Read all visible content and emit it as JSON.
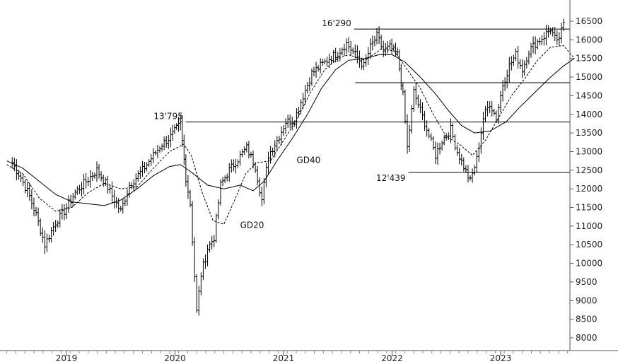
{
  "chart_data": {
    "type": "line",
    "style": "ohlc-bars",
    "title": "",
    "xlabel": "",
    "ylabel": "",
    "x_ticks": [
      "2019",
      "2020",
      "2021",
      "2022",
      "2023"
    ],
    "y_ticks": [
      16500,
      16000,
      15500,
      15000,
      14500,
      14000,
      13500,
      13000,
      12500,
      12000,
      11500,
      11000,
      10500,
      10000,
      9500,
      9000,
      8500,
      8000
    ],
    "ylim": [
      7800,
      16650
    ],
    "xlim": [
      2018.45,
      2023.75
    ],
    "y_axis_position": "right",
    "grid": false,
    "colors": {
      "price": "#000000",
      "levels": "#000000",
      "axis": "#555555"
    },
    "series": [
      {
        "role": "price",
        "points": [
          [
            2018.5,
            12700
          ],
          [
            2018.58,
            12300
          ],
          [
            2018.66,
            11800
          ],
          [
            2018.72,
            11300
          ],
          [
            2018.8,
            10500
          ],
          [
            2018.9,
            11100
          ],
          [
            2018.98,
            11400
          ],
          [
            2019.08,
            11900
          ],
          [
            2019.18,
            12200
          ],
          [
            2019.28,
            12500
          ],
          [
            2019.36,
            12150
          ],
          [
            2019.44,
            11700
          ],
          [
            2019.5,
            11400
          ],
          [
            2019.58,
            12100
          ],
          [
            2019.7,
            12500
          ],
          [
            2019.8,
            12900
          ],
          [
            2019.88,
            13200
          ],
          [
            2019.96,
            13400
          ],
          [
            2020.05,
            13750
          ],
          [
            2020.1,
            12300
          ],
          [
            2020.14,
            11600
          ],
          [
            2020.2,
            8700
          ],
          [
            2020.24,
            9700
          ],
          [
            2020.3,
            10400
          ],
          [
            2020.36,
            10700
          ],
          [
            2020.42,
            12100
          ],
          [
            2020.5,
            12500
          ],
          [
            2020.58,
            12800
          ],
          [
            2020.66,
            13100
          ],
          [
            2020.74,
            12600
          ],
          [
            2020.8,
            11700
          ],
          [
            2020.86,
            12900
          ],
          [
            2020.94,
            13300
          ],
          [
            2021.02,
            13800
          ],
          [
            2021.1,
            13850
          ],
          [
            2021.18,
            14500
          ],
          [
            2021.26,
            15100
          ],
          [
            2021.34,
            15300
          ],
          [
            2021.42,
            15500
          ],
          [
            2021.5,
            15650
          ],
          [
            2021.58,
            15900
          ],
          [
            2021.66,
            15600
          ],
          [
            2021.74,
            15300
          ],
          [
            2021.8,
            15800
          ],
          [
            2021.86,
            16100
          ],
          [
            2021.92,
            15700
          ],
          [
            2021.98,
            15800
          ],
          [
            2022.05,
            15600
          ],
          [
            2022.1,
            14500
          ],
          [
            2022.14,
            13100
          ],
          [
            2022.2,
            14600
          ],
          [
            2022.26,
            14100
          ],
          [
            2022.32,
            13600
          ],
          [
            2022.4,
            12900
          ],
          [
            2022.46,
            13300
          ],
          [
            2022.54,
            13600
          ],
          [
            2022.6,
            13000
          ],
          [
            2022.66,
            12600
          ],
          [
            2022.72,
            12200
          ],
          [
            2022.78,
            12800
          ],
          [
            2022.84,
            13900
          ],
          [
            2022.9,
            14300
          ],
          [
            2022.96,
            13900
          ],
          [
            2023.02,
            14800
          ],
          [
            2023.08,
            15300
          ],
          [
            2023.14,
            15600
          ],
          [
            2023.2,
            15200
          ],
          [
            2023.26,
            15700
          ],
          [
            2023.32,
            15900
          ],
          [
            2023.4,
            16100
          ],
          [
            2023.46,
            16300
          ],
          [
            2023.52,
            15900
          ],
          [
            2023.58,
            16400
          ],
          [
            2023.64,
            15900
          ],
          [
            2023.68,
            15600
          ]
        ]
      },
      {
        "role": "moving-average",
        "name": "GD20",
        "dashed": true,
        "points": [
          [
            2018.45,
            12650
          ],
          [
            2018.6,
            12400
          ],
          [
            2018.75,
            11750
          ],
          [
            2018.9,
            11400
          ],
          [
            2019.05,
            11500
          ],
          [
            2019.2,
            11900
          ],
          [
            2019.35,
            12150
          ],
          [
            2019.5,
            12000
          ],
          [
            2019.65,
            12050
          ],
          [
            2019.8,
            12550
          ],
          [
            2019.95,
            13000
          ],
          [
            2020.08,
            13200
          ],
          [
            2020.15,
            12900
          ],
          [
            2020.25,
            11900
          ],
          [
            2020.35,
            11150
          ],
          [
            2020.45,
            11050
          ],
          [
            2020.55,
            11700
          ],
          [
            2020.65,
            12400
          ],
          [
            2020.75,
            12700
          ],
          [
            2020.88,
            12750
          ],
          [
            2021.0,
            13300
          ],
          [
            2021.12,
            13850
          ],
          [
            2021.25,
            14600
          ],
          [
            2021.38,
            15200
          ],
          [
            2021.5,
            15500
          ],
          [
            2021.6,
            15600
          ],
          [
            2021.75,
            15450
          ],
          [
            2021.9,
            15750
          ],
          [
            2022.02,
            15700
          ],
          [
            2022.14,
            15200
          ],
          [
            2022.26,
            14700
          ],
          [
            2022.38,
            14000
          ],
          [
            2022.5,
            13400
          ],
          [
            2022.62,
            13200
          ],
          [
            2022.74,
            12900
          ],
          [
            2022.86,
            13300
          ],
          [
            2022.98,
            13900
          ],
          [
            2023.1,
            14500
          ],
          [
            2023.22,
            14950
          ],
          [
            2023.34,
            15450
          ],
          [
            2023.46,
            15800
          ],
          [
            2023.58,
            15850
          ],
          [
            2023.68,
            15500
          ]
        ]
      },
      {
        "role": "moving-average",
        "name": "GD40",
        "dashed": false,
        "points": [
          [
            2018.45,
            12750
          ],
          [
            2018.6,
            12550
          ],
          [
            2018.75,
            12200
          ],
          [
            2018.9,
            11850
          ],
          [
            2019.05,
            11650
          ],
          [
            2019.2,
            11600
          ],
          [
            2019.35,
            11550
          ],
          [
            2019.5,
            11700
          ],
          [
            2019.65,
            12000
          ],
          [
            2019.8,
            12350
          ],
          [
            2019.95,
            12600
          ],
          [
            2020.05,
            12650
          ],
          [
            2020.15,
            12450
          ],
          [
            2020.3,
            12100
          ],
          [
            2020.45,
            12000
          ],
          [
            2020.6,
            12100
          ],
          [
            2020.72,
            11950
          ],
          [
            2020.82,
            12200
          ],
          [
            2020.95,
            12800
          ],
          [
            2021.08,
            13350
          ],
          [
            2021.22,
            14000
          ],
          [
            2021.35,
            14700
          ],
          [
            2021.48,
            15200
          ],
          [
            2021.6,
            15450
          ],
          [
            2021.75,
            15500
          ],
          [
            2021.88,
            15600
          ],
          [
            2022.0,
            15600
          ],
          [
            2022.12,
            15400
          ],
          [
            2022.26,
            15000
          ],
          [
            2022.4,
            14550
          ],
          [
            2022.52,
            14100
          ],
          [
            2022.64,
            13700
          ],
          [
            2022.76,
            13500
          ],
          [
            2022.9,
            13550
          ],
          [
            2023.05,
            13800
          ],
          [
            2023.18,
            14200
          ],
          [
            2023.32,
            14600
          ],
          [
            2023.46,
            15000
          ],
          [
            2023.58,
            15300
          ],
          [
            2023.68,
            15500
          ]
        ]
      }
    ],
    "annotations": [
      {
        "text": "16'290",
        "y": 16290,
        "x_start": 2021.65,
        "x_end": 2023.75
      },
      {
        "text": "",
        "y": 14850,
        "x_start": 2021.66,
        "x_end": 2023.75
      },
      {
        "text": "13'795",
        "y": 13795,
        "x_start": 2020.1,
        "x_end": 2023.75
      },
      {
        "text": "12'439",
        "y": 12439,
        "x_start": 2022.15,
        "x_end": 2023.75
      },
      {
        "text": "GD40",
        "x": 2021.12,
        "y": 12700
      },
      {
        "text": "GD20",
        "x": 2020.6,
        "y": 10950
      }
    ]
  }
}
